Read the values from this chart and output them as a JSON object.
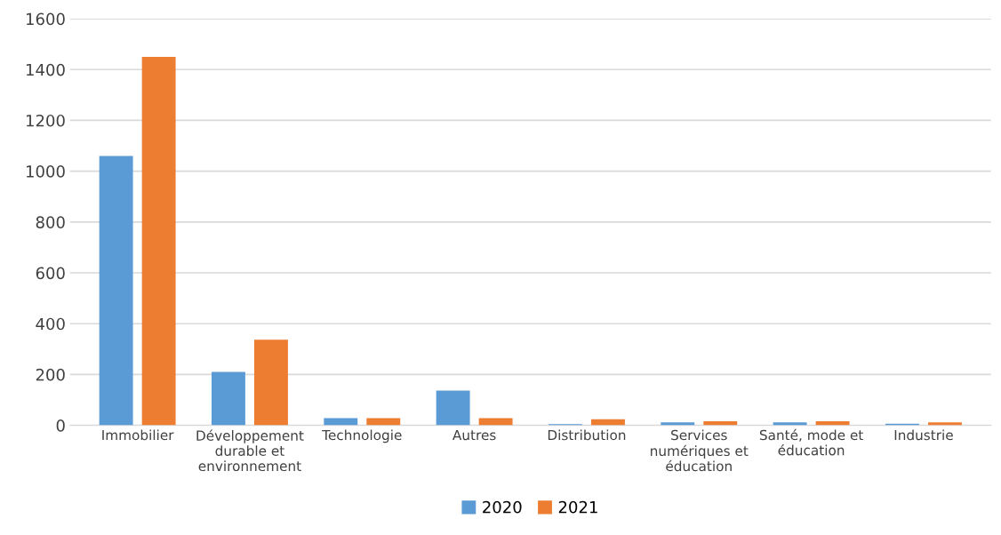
{
  "chart_data": {
    "type": "bar",
    "categories": [
      "Immobilier",
      "Développement\ndurable et\nenvironnement",
      "Technologie",
      "Autres",
      "Distribution",
      "Services\nnumériques et\néducation",
      "Santé, mode et\néducation",
      "Industrie"
    ],
    "series": [
      {
        "name": "2020",
        "color": "#5b9bd5",
        "values": [
          1060,
          210,
          28,
          137,
          5,
          12,
          12,
          6
        ]
      },
      {
        "name": "2021",
        "color": "#ed7d31",
        "values": [
          1450,
          337,
          28,
          28,
          24,
          16,
          16,
          12
        ]
      }
    ],
    "ylim": [
      0,
      1600
    ],
    "yticks": [
      0,
      200,
      400,
      600,
      800,
      1000,
      1200,
      1400,
      1600
    ],
    "grid": "y",
    "legend": "bottom"
  }
}
